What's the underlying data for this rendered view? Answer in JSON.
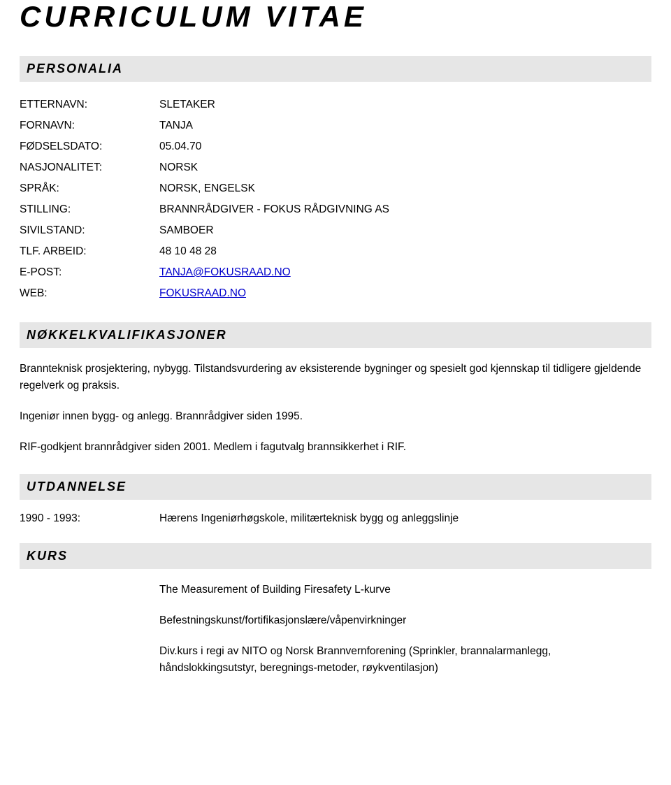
{
  "title": "CURRICULUM VITAE",
  "sections": {
    "personalia": {
      "heading": "PERSONALIA",
      "rows": [
        {
          "label": "ETTERNAVN:",
          "value": "SLETAKER"
        },
        {
          "label": "FORNAVN:",
          "value": "TANJA"
        },
        {
          "label": "FØDSELSDATO:",
          "value": "05.04.70"
        },
        {
          "label": "NASJONALITET:",
          "value": "NORSK"
        },
        {
          "label": "SPRÅK:",
          "value": "NORSK, ENGELSK"
        },
        {
          "label": "STILLING:",
          "value": "BRANNRÅDGIVER - FOKUS RÅDGIVNING AS"
        },
        {
          "label": "SIVILSTAND:",
          "value": "SAMBOER"
        },
        {
          "label": "TLF. ARBEID:",
          "value": "48 10 48 28"
        },
        {
          "label": "E-POST:",
          "value": "TANJA@FOKUSRAAD.NO",
          "link": true
        },
        {
          "label": "WEB:",
          "value": "FOKUSRAAD.NO",
          "link": true
        }
      ]
    },
    "qualifications": {
      "heading": "NØKKELKVALIFIKASJONER",
      "paragraphs": [
        "Brannteknisk prosjektering, nybygg. Tilstandsvurdering av eksisterende bygninger og spesielt god kjennskap til tidligere gjeldende regelverk og praksis.",
        "Ingeniør innen bygg- og anlegg. Brannrådgiver siden 1995.",
        "RIF-godkjent brannrådgiver siden 2001. Medlem i fagutvalg brannsikkerhet i RIF."
      ]
    },
    "education": {
      "heading": "UTDANNELSE",
      "items": [
        {
          "years": "1990 - 1993:",
          "desc": "Hærens Ingeniørhøgskole, militærteknisk bygg og anleggslinje"
        }
      ]
    },
    "courses": {
      "heading": "KURS",
      "items": [
        "The Measurement of Building Firesafety L-kurve",
        "Befestningskunst/fortifikasjonslære/våpenvirkninger",
        "Div.kurs i regi av NITO og Norsk Brannvernforening (Sprinkler, brannalarmanlegg, håndslokkingsutstyr, beregnings-metoder, røykventilasjon)"
      ]
    }
  },
  "colors": {
    "section_bg": "#e6e6e6",
    "link_color": "#0000cc",
    "text_color": "#000000",
    "page_bg": "#ffffff"
  }
}
